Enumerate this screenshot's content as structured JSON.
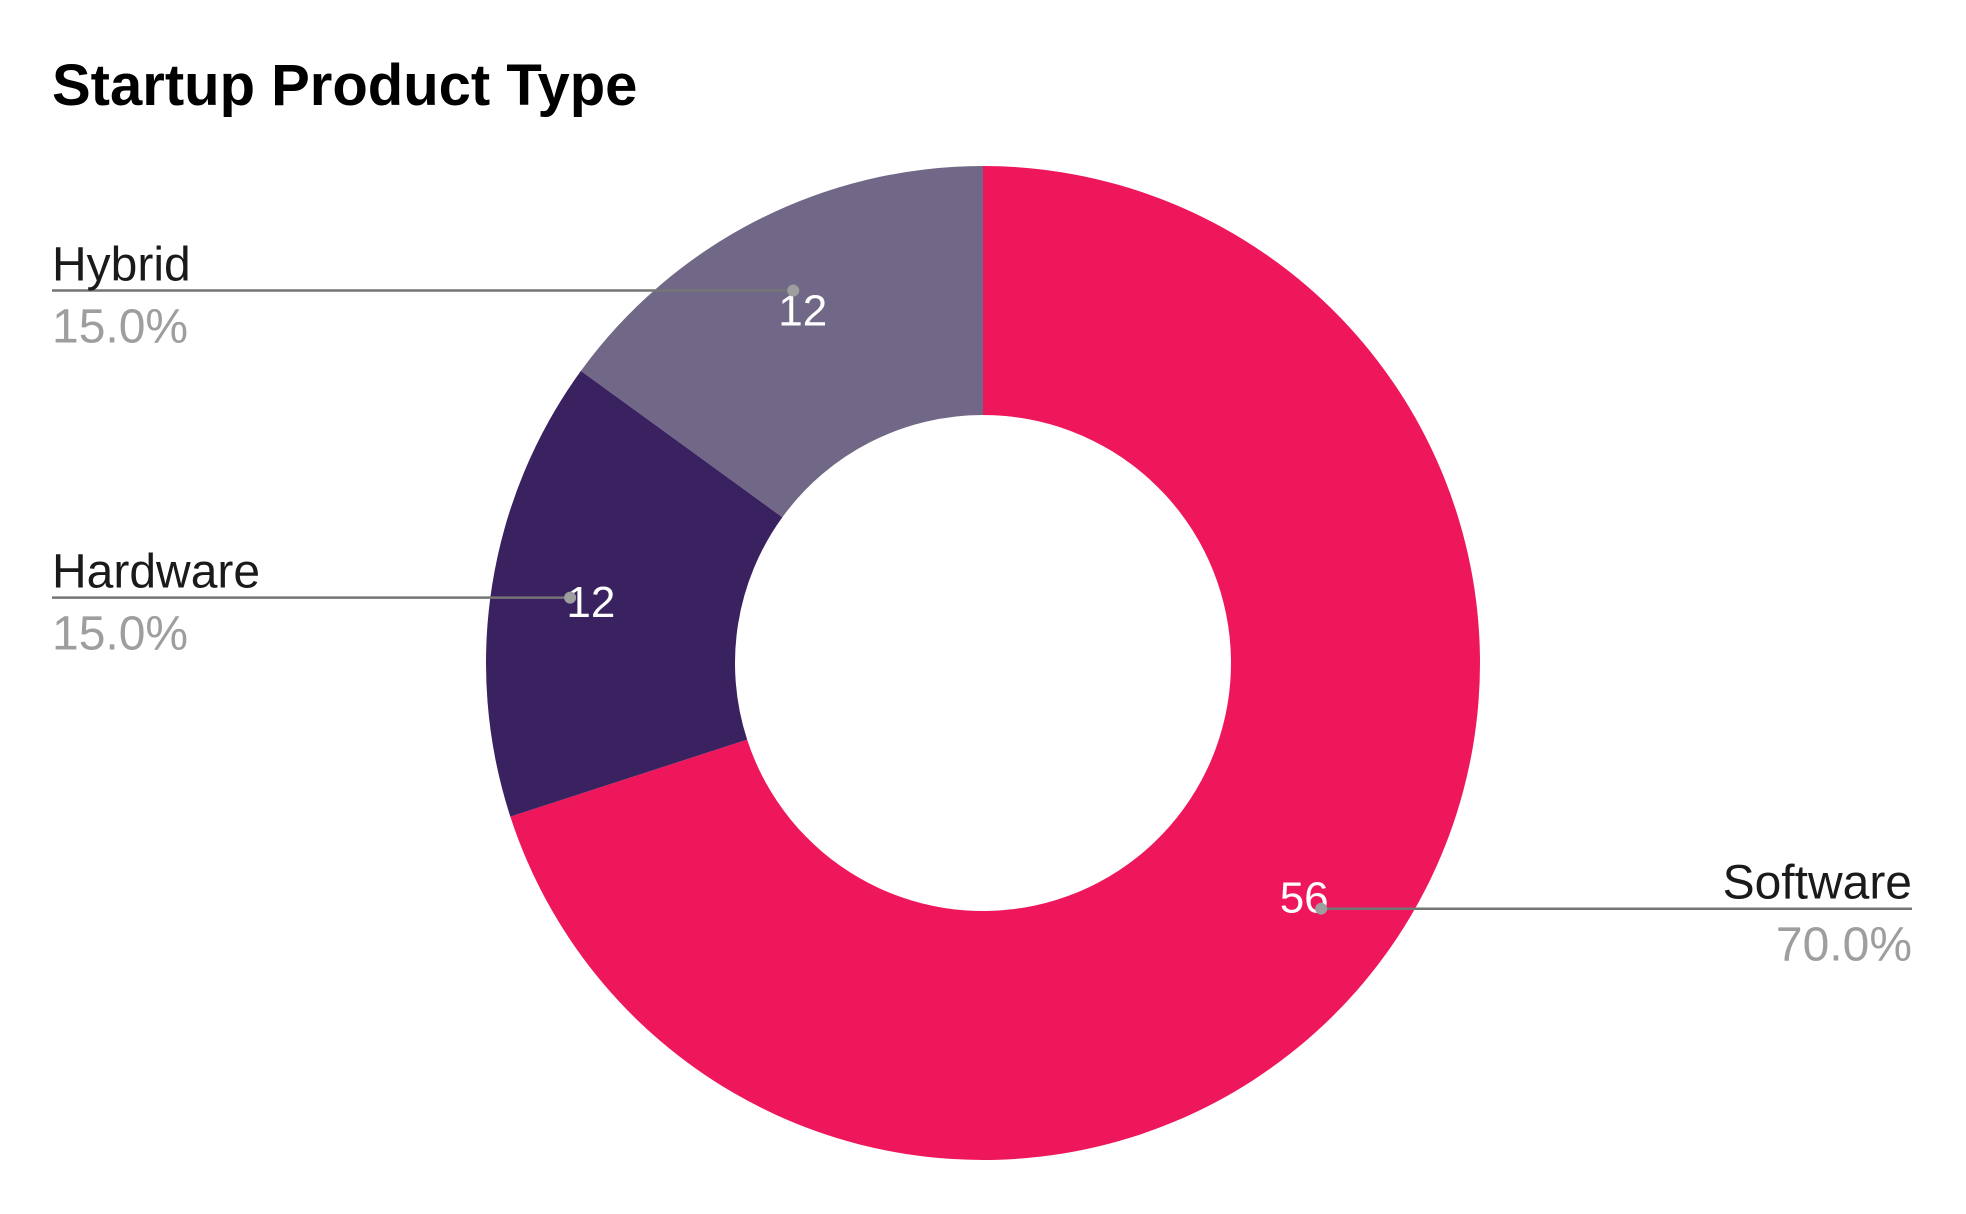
{
  "chart_data": {
    "type": "pie",
    "title": "Startup Product Type",
    "slices": [
      {
        "label": "Software",
        "value": 56,
        "percent_label": "70.0%",
        "color": "#EF175B"
      },
      {
        "label": "Hardware",
        "value": 12,
        "percent_label": "15.0%",
        "color": "#3A2160"
      },
      {
        "label": "Hybrid",
        "value": 12,
        "percent_label": "15.0%",
        "color": "#716887"
      }
    ],
    "donut": true,
    "start_angle_deg": 0,
    "direction": "clockwise",
    "legend": "callouts"
  }
}
